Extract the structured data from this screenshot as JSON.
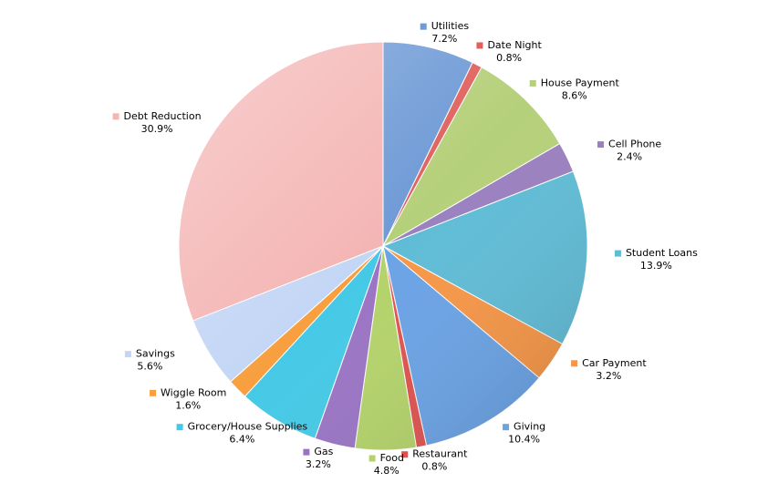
{
  "chart_data": {
    "type": "pie",
    "categories": [
      "Utilities",
      "Date Night",
      "House Payment",
      "Cell Phone",
      "Student Loans",
      "Car Payment",
      "Giving",
      "Restaurant",
      "Food",
      "Gas",
      "Grocery/House Supplies",
      "Wiggle Room",
      "Savings",
      "Debt Reduction"
    ],
    "values": [
      7.2,
      0.8,
      8.6,
      2.4,
      13.9,
      3.2,
      10.4,
      0.8,
      4.8,
      3.2,
      6.4,
      1.6,
      5.6,
      30.9
    ],
    "value_labels": [
      "7.2%",
      "0.8%",
      "8.6%",
      "2.4%",
      "13.9%",
      "3.2%",
      "10.4%",
      "0.8%",
      "4.8%",
      "3.2%",
      "6.4%",
      "1.6%",
      "5.6%",
      "30.9%"
    ],
    "colors": [
      "#6e9ad6",
      "#e0605c",
      "#b5d07a",
      "#9a80bf",
      "#5fbcd6",
      "#f79646",
      "#6aa3e6",
      "#e0524f",
      "#b4d36a",
      "#9a74c4",
      "#45c9e6",
      "#f8a040",
      "#c3d6f5",
      "#f4b5b4"
    ]
  }
}
